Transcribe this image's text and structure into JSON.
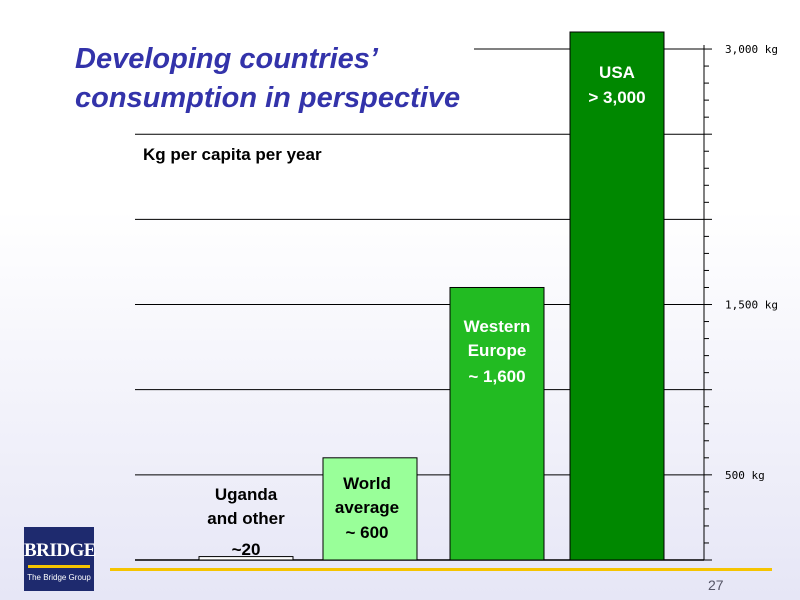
{
  "title_lines": [
    "Developing countries’",
    "consumption in perspective"
  ],
  "page_number": "27",
  "logo": {
    "word": "BRIDGE",
    "subtitle": "The Bridge Group"
  },
  "chart_data": {
    "type": "bar",
    "title": "Developing countries’ consumption in perspective",
    "ylabel": "Kg per capita per year",
    "xlabel": "",
    "categories": [
      "Uganda and other",
      "World average",
      "Western Europe",
      "USA"
    ],
    "values": [
      20,
      600,
      1600,
      3100
    ],
    "bar_labels": [
      [
        "Uganda",
        "and other",
        "~20"
      ],
      [
        "World",
        "average",
        "~ 600"
      ],
      [
        "Western",
        "Europe",
        "~ 1,600"
      ],
      [
        "USA",
        "> 3,000"
      ]
    ],
    "bar_colors": [
      "#ffffff",
      "#99ff99",
      "#22bb22",
      "#008800"
    ],
    "label_colors": [
      "#000000",
      "#000000",
      "#ffffff",
      "#ffffff"
    ],
    "axis_ticks": [
      {
        "value": 3000,
        "label": "3,000 kg"
      },
      {
        "value": 1500,
        "label": "1,500 kg"
      },
      {
        "value": 500,
        "label": "500 kg"
      }
    ],
    "ylim": [
      0,
      3100
    ],
    "grid": true,
    "gridline_values": [
      500,
      1000,
      1500,
      2000,
      2500,
      3000
    ]
  }
}
